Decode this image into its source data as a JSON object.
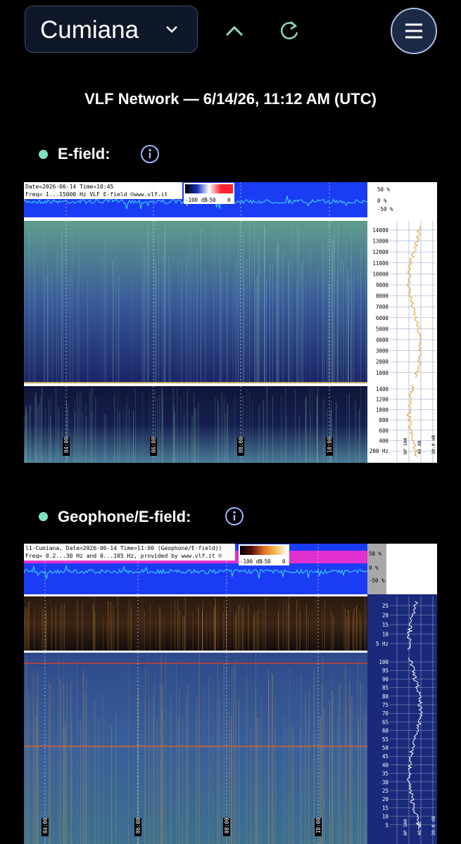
{
  "header": {
    "location": "Cumiana"
  },
  "title": "VLF Network — 6/14/26, 11:12 AM (UTC)",
  "sections": [
    {
      "label": "E-field:",
      "spectrogram": {
        "header_lines": [
          "Date=2026-06-14 Time=10:45",
          "Freq= 1...15000 Hz   VLF E-field ©www.vlf.it"
        ],
        "scale_labels": [
          "-100 dB",
          "-50",
          "0"
        ],
        "amplitude_labels": [
          "50 %",
          "0 %",
          "-50 %"
        ],
        "freq_labels_upper": [
          "14000",
          "13000",
          "12000",
          "11000",
          "10000",
          "9000",
          "8000",
          "7000",
          "6000",
          "5000",
          "4000",
          "3000",
          "2000",
          "1000"
        ],
        "freq_labels_lower": [
          "1400",
          "1200",
          "1000",
          "800",
          "600",
          "400",
          "200 Hz"
        ],
        "side_labels": [
          "BP 100",
          "40 dB",
          "20.0 dB"
        ],
        "time_labels": [
          "04:00",
          "06:00",
          "08:00",
          "10:00"
        ]
      }
    },
    {
      "label": "Geophone/E-field:",
      "spectrogram": {
        "header_lines": [
          "l1-Cumiana, Date=2026-06-14 Time=11:00 (Geophone/E-field))",
          "Freq= 0.2...30 Hz and 0...105 Hz, provided by www.vlf.it ©"
        ],
        "scale_labels": [
          "-100 dB",
          "-50",
          "0"
        ],
        "amplitude_labels": [
          "50 %",
          "0 %",
          "-50 %"
        ],
        "freq_labels_upper": [
          "25",
          "20",
          "15",
          "10",
          "5 Hz"
        ],
        "freq_labels_lower": [
          "100",
          "95",
          "90",
          "85",
          "80",
          "75",
          "70",
          "65",
          "60",
          "55",
          "50",
          "45",
          "40",
          "35",
          "30",
          "25",
          "20",
          "15",
          "10",
          "5"
        ],
        "side_labels": [
          "BP 100",
          "40 dB",
          "20.0 dB"
        ],
        "time_labels": [
          "04:00",
          "06:00",
          "08:00",
          "10:00"
        ]
      }
    }
  ]
}
